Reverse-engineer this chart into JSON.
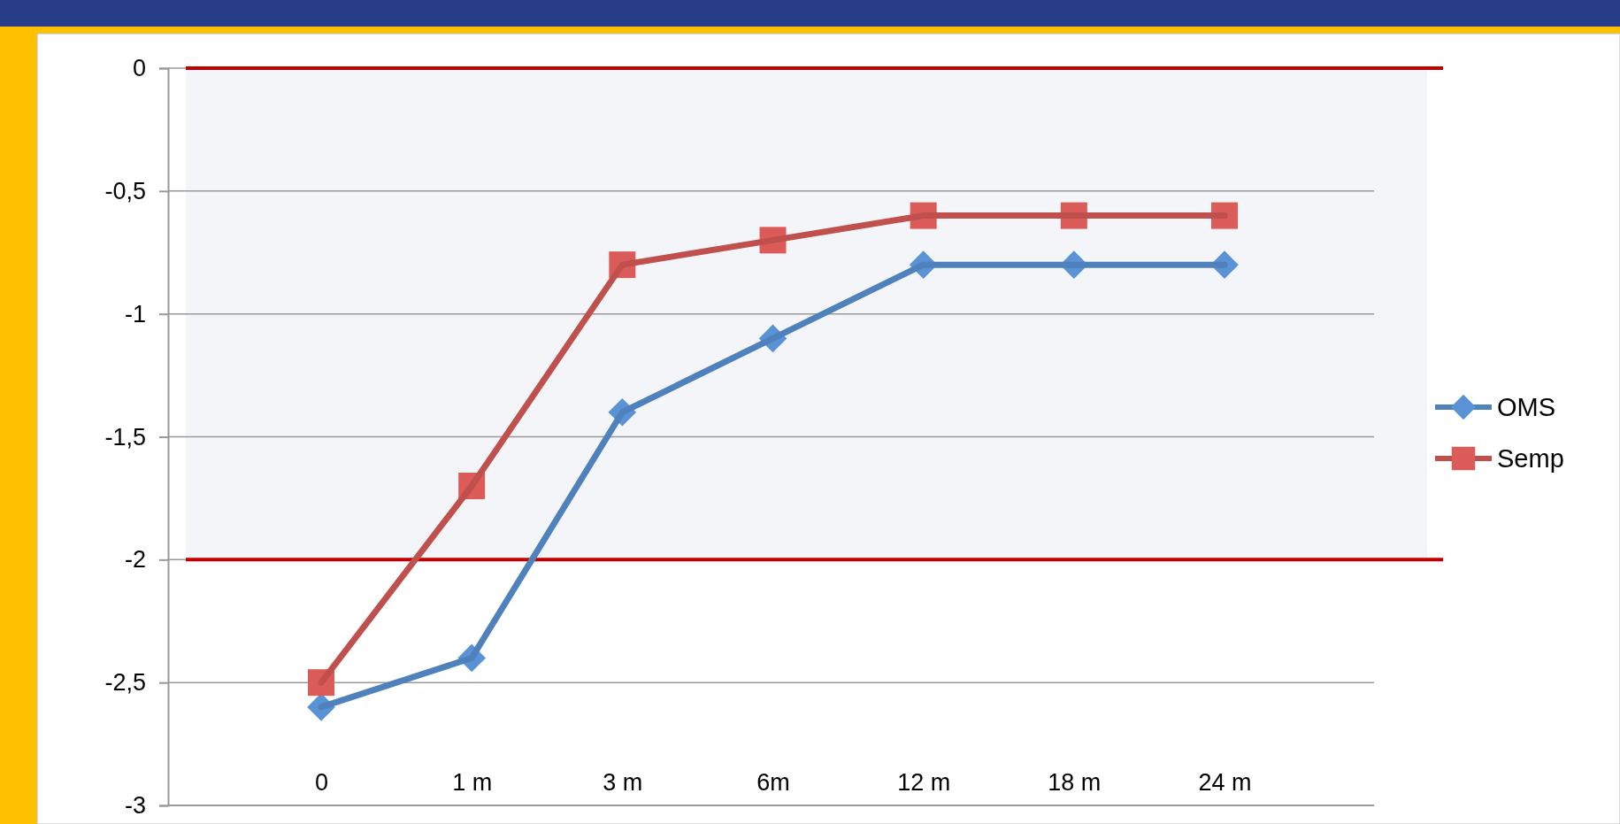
{
  "chart_data": {
    "type": "line",
    "categories": [
      "0",
      "1 m",
      "3 m",
      "6m",
      "12 m",
      "18 m",
      "24 m"
    ],
    "series": [
      {
        "name": "OMS",
        "color": "#4f81bd",
        "marker": "diamond",
        "values": [
          -2.6,
          -2.4,
          -1.4,
          -1.1,
          -0.8,
          -0.8,
          -0.8
        ]
      },
      {
        "name": "Semp",
        "color": "#c0504d",
        "marker": "square",
        "values": [
          -2.5,
          -1.7,
          -0.8,
          -0.7,
          -0.6,
          -0.6,
          -0.6
        ]
      }
    ],
    "ylim": [
      -3,
      0
    ],
    "yticks": [
      {
        "value": -3,
        "label": "-3"
      },
      {
        "value": -2.5,
        "label": "-2,5"
      },
      {
        "value": -2,
        "label": "-2"
      },
      {
        "value": -1.5,
        "label": "-1,5"
      },
      {
        "value": -1,
        "label": "-1"
      },
      {
        "value": -0.5,
        "label": "-0,5"
      },
      {
        "value": 0,
        "label": "0"
      }
    ],
    "grid": "y",
    "legend": "right",
    "line_style": "solid",
    "bands": [
      {
        "axis": "y",
        "from": -2,
        "to": 0,
        "color": "#f4f5f9"
      }
    ],
    "ref_lines": [
      {
        "axis": "y",
        "value": 0,
        "color": "#c00000"
      },
      {
        "axis": "y",
        "value": -2,
        "color": "#c00000"
      }
    ]
  }
}
